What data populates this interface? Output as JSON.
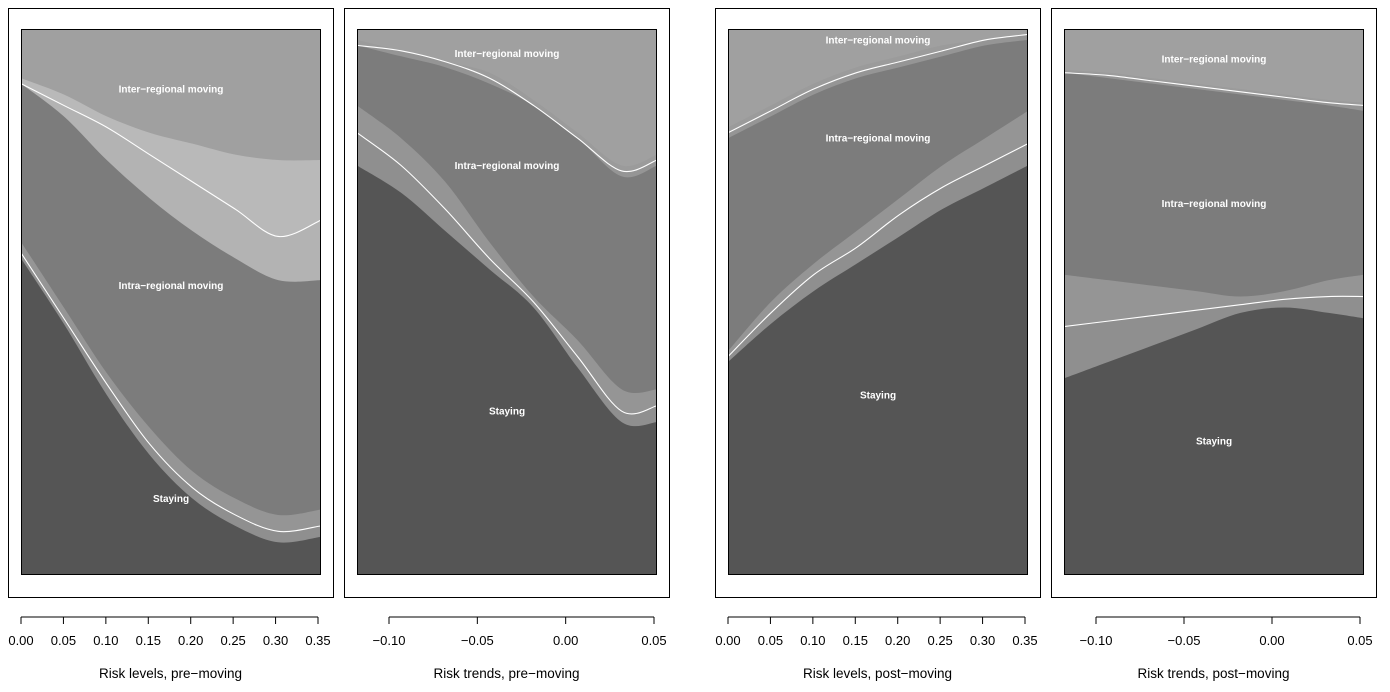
{
  "colors": {
    "staying": "#555555",
    "intra": "#7c7c7c",
    "inter": "#a0a0a0",
    "ci_band": "#9a9a9a",
    "ci_band_light": "#bdbdbd",
    "ci_line": "#ffffff"
  },
  "chart_data": [
    {
      "type": "area",
      "stacked": "proportional",
      "xlabel": "Risk levels, pre−moving",
      "ylim": [
        0,
        1
      ],
      "xlim": [
        0,
        0.35
      ],
      "xticks": [
        0.0,
        0.05,
        0.1,
        0.15,
        0.2,
        0.25,
        0.3,
        0.35
      ],
      "xtick_labels": [
        "0.00",
        "0.05",
        "0.10",
        "0.15",
        "0.20",
        "0.25",
        "0.30",
        "0.35"
      ],
      "region_labels": [
        {
          "text": "Inter−regional moving",
          "x": 0.175,
          "y": 0.89
        },
        {
          "text": "Intra−regional moving",
          "x": 0.175,
          "y": 0.53
        },
        {
          "text": "Staying",
          "x": 0.175,
          "y": 0.14
        }
      ],
      "x": [
        0.0,
        0.05,
        0.1,
        0.15,
        0.2,
        0.25,
        0.3,
        0.35
      ],
      "lower_boundary": {
        "estimate": [
          0.59,
          0.47,
          0.35,
          0.24,
          0.16,
          0.11,
          0.08,
          0.09
        ],
        "low": [
          0.58,
          0.46,
          0.33,
          0.22,
          0.14,
          0.09,
          0.06,
          0.07
        ],
        "high": [
          0.61,
          0.49,
          0.37,
          0.27,
          0.19,
          0.14,
          0.11,
          0.12
        ]
      },
      "upper_boundary": {
        "estimate": [
          0.9,
          0.86,
          0.82,
          0.77,
          0.72,
          0.67,
          0.62,
          0.65
        ],
        "low": [
          0.9,
          0.84,
          0.76,
          0.69,
          0.63,
          0.58,
          0.54,
          0.54
        ],
        "high": [
          0.91,
          0.88,
          0.84,
          0.81,
          0.79,
          0.77,
          0.76,
          0.76
        ]
      }
    },
    {
      "type": "area",
      "stacked": "proportional",
      "xlabel": "Risk trends, pre−moving",
      "ylim": [
        0,
        1
      ],
      "xlim": [
        -0.115,
        0.055
      ],
      "xticks": [
        -0.1,
        -0.05,
        0.0,
        0.05
      ],
      "xtick_labels": [
        "−0.10",
        "−0.05",
        "0.00",
        "0.05"
      ],
      "region_labels": [
        {
          "text": "Inter−regional moving",
          "x": -0.03,
          "y": 0.955
        },
        {
          "text": "Intra−regional moving",
          "x": -0.03,
          "y": 0.75
        },
        {
          "text": "Staying",
          "x": -0.03,
          "y": 0.3
        }
      ],
      "x": [
        -0.115,
        -0.09,
        -0.065,
        -0.04,
        -0.015,
        0.01,
        0.035,
        0.055
      ],
      "lower_boundary": {
        "estimate": [
          0.81,
          0.75,
          0.67,
          0.58,
          0.5,
          0.4,
          0.3,
          0.31
        ],
        "low": [
          0.75,
          0.7,
          0.63,
          0.56,
          0.49,
          0.38,
          0.28,
          0.28
        ],
        "high": [
          0.86,
          0.8,
          0.72,
          0.61,
          0.51,
          0.43,
          0.34,
          0.34
        ]
      },
      "upper_boundary": {
        "estimate": [
          0.97,
          0.96,
          0.94,
          0.91,
          0.86,
          0.8,
          0.74,
          0.76
        ],
        "low": [
          0.97,
          0.95,
          0.93,
          0.9,
          0.86,
          0.8,
          0.73,
          0.75
        ],
        "high": [
          0.98,
          0.96,
          0.94,
          0.92,
          0.87,
          0.81,
          0.75,
          0.77
        ]
      }
    },
    {
      "type": "area",
      "stacked": "proportional",
      "xlabel": "Risk levels, post−moving",
      "ylim": [
        0,
        1
      ],
      "xlim": [
        0,
        0.35
      ],
      "xticks": [
        0.0,
        0.05,
        0.1,
        0.15,
        0.2,
        0.25,
        0.3,
        0.35
      ],
      "xtick_labels": [
        "0.00",
        "0.05",
        "0.10",
        "0.15",
        "0.20",
        "0.25",
        "0.30",
        "0.35"
      ],
      "region_labels": [
        {
          "text": "Inter−regional moving",
          "x": 0.175,
          "y": 0.98
        },
        {
          "text": "Intra−regional moving",
          "x": 0.175,
          "y": 0.8
        },
        {
          "text": "Staying",
          "x": 0.175,
          "y": 0.33
        }
      ],
      "x": [
        0.0,
        0.05,
        0.1,
        0.15,
        0.2,
        0.25,
        0.3,
        0.35
      ],
      "lower_boundary": {
        "estimate": [
          0.4,
          0.48,
          0.55,
          0.6,
          0.66,
          0.71,
          0.75,
          0.79
        ],
        "low": [
          0.39,
          0.46,
          0.52,
          0.57,
          0.62,
          0.67,
          0.71,
          0.75
        ],
        "high": [
          0.41,
          0.5,
          0.57,
          0.63,
          0.69,
          0.75,
          0.8,
          0.85
        ]
      },
      "upper_boundary": {
        "estimate": [
          0.81,
          0.85,
          0.89,
          0.92,
          0.94,
          0.96,
          0.98,
          0.99
        ],
        "low": [
          0.8,
          0.84,
          0.88,
          0.91,
          0.93,
          0.95,
          0.97,
          0.98
        ],
        "high": [
          0.82,
          0.86,
          0.9,
          0.93,
          0.95,
          0.97,
          0.98,
          0.99
        ]
      }
    },
    {
      "type": "area",
      "stacked": "proportional",
      "xlabel": "Risk trends, post−moving",
      "ylim": [
        0,
        1
      ],
      "xlim": [
        -0.115,
        0.055
      ],
      "xticks": [
        -0.1,
        -0.05,
        0.0,
        0.05
      ],
      "xtick_labels": [
        "−0.10",
        "−0.05",
        "0.00",
        "0.05"
      ],
      "region_labels": [
        {
          "text": "Inter−regional moving",
          "x": -0.03,
          "y": 0.945
        },
        {
          "text": "Intra−regional moving",
          "x": -0.03,
          "y": 0.68
        },
        {
          "text": "Staying",
          "x": -0.03,
          "y": 0.245
        }
      ],
      "x": [
        -0.115,
        -0.09,
        -0.065,
        -0.04,
        -0.015,
        0.01,
        0.035,
        0.055
      ],
      "lower_boundary": {
        "estimate": [
          0.455,
          0.465,
          0.475,
          0.485,
          0.495,
          0.505,
          0.51,
          0.51
        ],
        "low": [
          0.36,
          0.39,
          0.42,
          0.45,
          0.48,
          0.49,
          0.48,
          0.47
        ],
        "high": [
          0.55,
          0.54,
          0.53,
          0.52,
          0.51,
          0.52,
          0.54,
          0.55
        ]
      },
      "upper_boundary": {
        "estimate": [
          0.92,
          0.915,
          0.905,
          0.895,
          0.885,
          0.875,
          0.865,
          0.86
        ],
        "low": [
          0.92,
          0.91,
          0.9,
          0.89,
          0.88,
          0.87,
          0.86,
          0.85
        ],
        "high": [
          0.925,
          0.92,
          0.91,
          0.9,
          0.89,
          0.88,
          0.87,
          0.865
        ]
      }
    }
  ]
}
